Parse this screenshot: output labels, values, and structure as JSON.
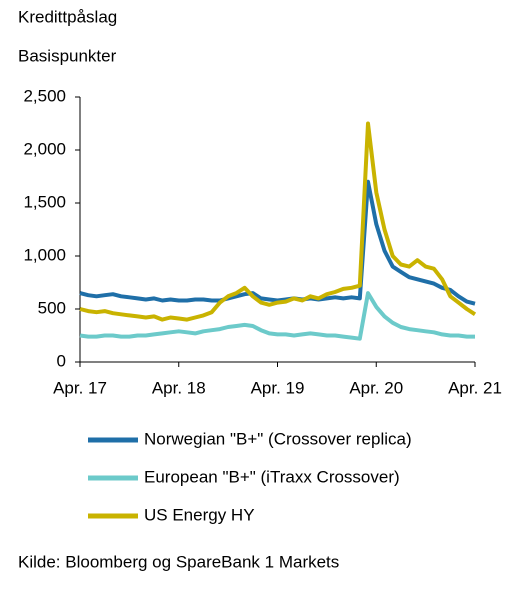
{
  "chart_data": {
    "type": "line",
    "title": "Kredittpåslag",
    "subtitle": "Basispunkter",
    "source": "Kilde: Bloomberg og SpareBank 1 Markets",
    "categories": [
      "Apr. 17",
      null,
      null,
      null,
      null,
      null,
      null,
      null,
      null,
      null,
      null,
      null,
      "Apr. 18",
      null,
      null,
      null,
      null,
      null,
      null,
      null,
      null,
      null,
      null,
      null,
      "Apr. 19",
      null,
      null,
      null,
      null,
      null,
      null,
      null,
      null,
      null,
      null,
      null,
      "Apr. 20",
      null,
      null,
      null,
      null,
      null,
      null,
      null,
      null,
      null,
      null,
      null,
      "Apr. 21"
    ],
    "ylim": [
      0,
      2500
    ],
    "yticks": [
      0,
      500,
      {
        "value": 1000,
        "label": "1,000"
      },
      {
        "value": 1500,
        "label": "1,500"
      },
      {
        "value": 2000,
        "label": "2,000"
      },
      {
        "value": 2500,
        "label": "2,500"
      }
    ],
    "grid": false,
    "series": [
      {
        "name": "Norwegian \"B+\" (Crossover replica)",
        "color": "#1f6fa8",
        "values": [
          650,
          630,
          620,
          630,
          640,
          620,
          610,
          600,
          590,
          600,
          580,
          590,
          580,
          580,
          590,
          590,
          580,
          580,
          600,
          620,
          640,
          650,
          600,
          590,
          580,
          590,
          600,
          590,
          600,
          590,
          600,
          610,
          600,
          610,
          600,
          1700,
          1300,
          1050,
          900,
          850,
          800,
          780,
          760,
          740,
          700,
          680,
          620,
          570,
          550
        ]
      },
      {
        "name": "European \"B+\" (iTraxx Crossover)",
        "color": "#6ccaca",
        "values": [
          250,
          240,
          240,
          250,
          250,
          240,
          240,
          250,
          250,
          260,
          270,
          280,
          290,
          280,
          270,
          290,
          300,
          310,
          330,
          340,
          350,
          340,
          300,
          270,
          260,
          260,
          250,
          260,
          270,
          260,
          250,
          250,
          240,
          230,
          220,
          650,
          520,
          430,
          370,
          330,
          310,
          300,
          290,
          280,
          260,
          250,
          250,
          240,
          240
        ]
      },
      {
        "name": "US Energy HY",
        "color": "#c9b300",
        "values": [
          500,
          480,
          470,
          480,
          460,
          450,
          440,
          430,
          420,
          430,
          400,
          420,
          410,
          400,
          420,
          440,
          470,
          560,
          620,
          650,
          700,
          620,
          560,
          540,
          560,
          570,
          600,
          580,
          620,
          600,
          640,
          660,
          690,
          700,
          720,
          2250,
          1600,
          1250,
          1000,
          920,
          900,
          960,
          900,
          880,
          780,
          620,
          560,
          500,
          450
        ]
      }
    ]
  }
}
